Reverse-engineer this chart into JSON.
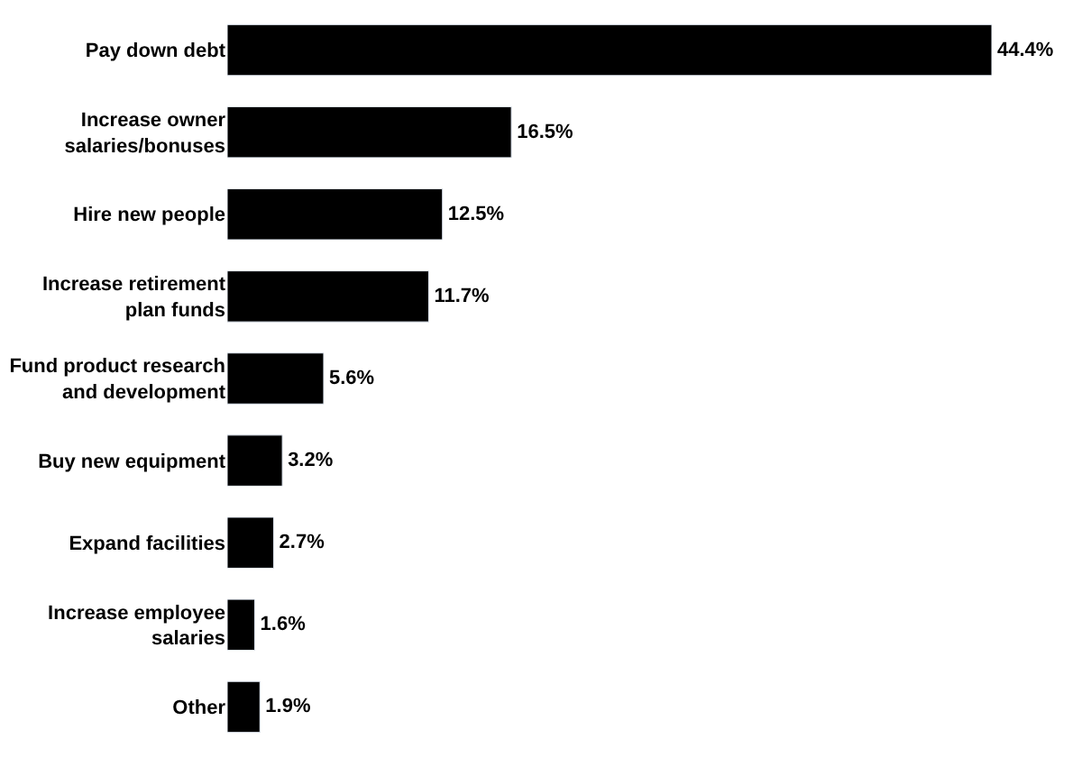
{
  "chart_data": {
    "type": "bar",
    "orientation": "horizontal",
    "categories": [
      "Pay down debt",
      "Increase owner\nsalaries/bonuses",
      "Hire new people",
      "Increase retirement\nplan funds",
      "Fund product research\nand development",
      "Buy new equipment",
      "Expand facilities",
      "Increase employee\nsalaries",
      "Other"
    ],
    "values": [
      44.4,
      16.5,
      12.5,
      11.7,
      5.6,
      3.2,
      2.7,
      1.6,
      1.9
    ],
    "value_labels": [
      "44.4%",
      "16.5%",
      "12.5%",
      "11.7%",
      "5.6%",
      "3.2%",
      "2.7%",
      "1.6%",
      "1.9%"
    ],
    "color": "#000000",
    "xlim": [
      0,
      44.4
    ],
    "tick_labels": "y"
  }
}
